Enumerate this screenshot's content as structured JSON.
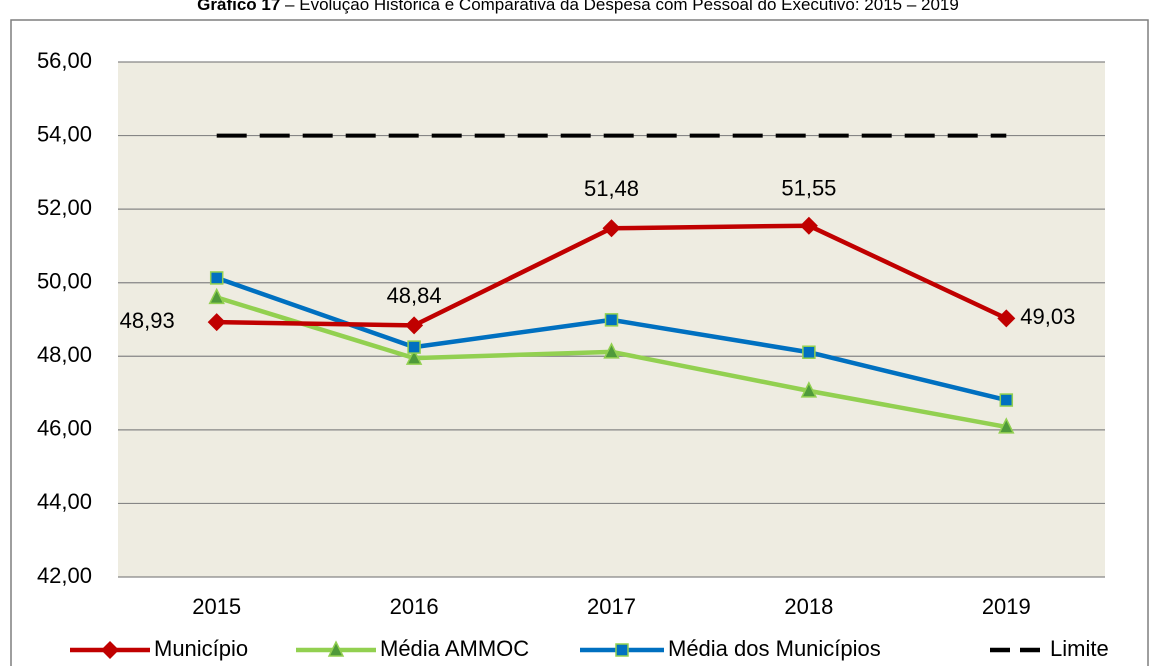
{
  "chart_data": {
    "type": "line",
    "title_label": "Gráfico 17",
    "title": " – Evolução Histórica e Comparativa da Despesa com Pessoal do Executivo: 2015 – 2019",
    "categories": [
      "2015",
      "2016",
      "2017",
      "2018",
      "2019"
    ],
    "series": [
      {
        "name": "Município",
        "color": "#c00000",
        "marker": "diamond",
        "values": [
          48.93,
          48.84,
          51.48,
          51.55,
          49.03
        ],
        "value_labels": [
          "48,93",
          "48,84",
          "51,48",
          "51,55",
          "49,03"
        ]
      },
      {
        "name": "Média AMMOC",
        "color": "#92d050",
        "marker": "triangle",
        "values": [
          49.6,
          47.95,
          48.12,
          47.06,
          46.08
        ]
      },
      {
        "name": "Média dos Municípios",
        "color": "#0070c0",
        "marker": "square",
        "values": [
          50.13,
          48.25,
          48.99,
          48.11,
          46.81
        ]
      },
      {
        "name": "Limite",
        "color": "#000000",
        "dashed": true,
        "values": [
          54,
          54,
          54,
          54,
          54
        ]
      }
    ],
    "ylim": [
      42,
      56
    ],
    "yticks": [
      {
        "value": 42,
        "label": "42,00"
      },
      {
        "value": 44,
        "label": "44,00"
      },
      {
        "value": 46,
        "label": "46,00"
      },
      {
        "value": 48,
        "label": "48,00"
      },
      {
        "value": 50,
        "label": "50,00"
      },
      {
        "value": 52,
        "label": "52,00"
      },
      {
        "value": 54,
        "label": "54,00"
      },
      {
        "value": 56,
        "label": "56,00"
      }
    ],
    "grid": true
  }
}
